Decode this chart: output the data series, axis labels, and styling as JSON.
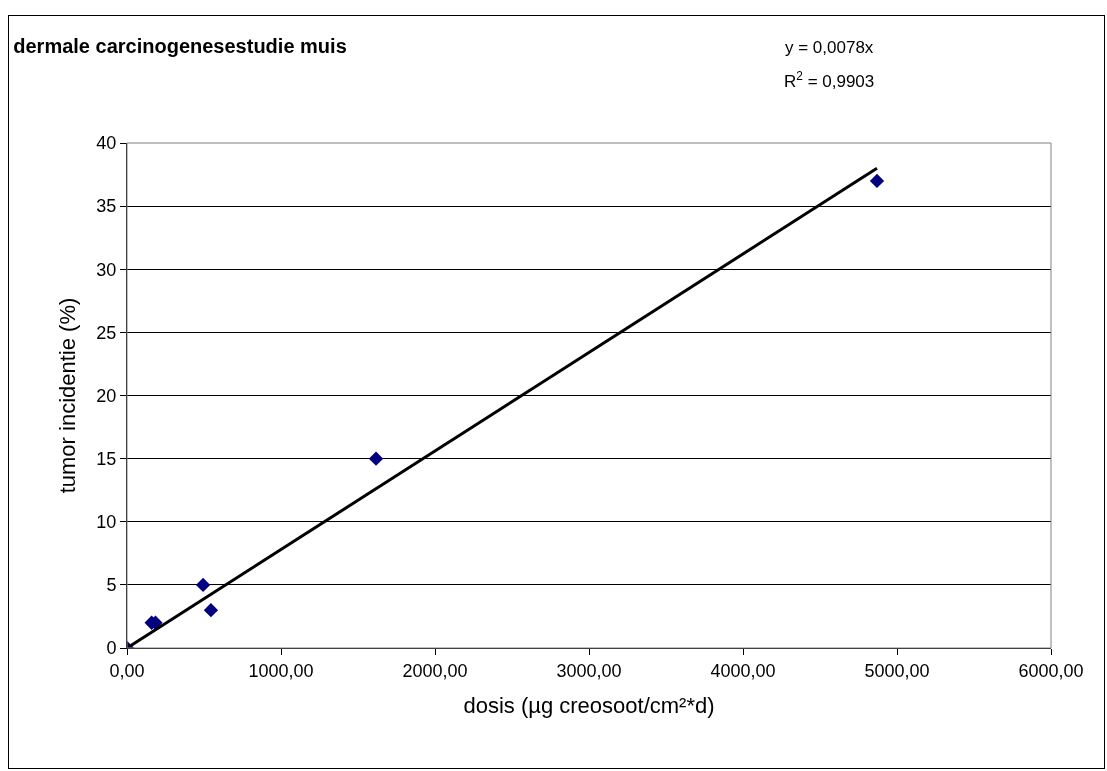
{
  "chart_data": {
    "type": "scatter",
    "title": "dermale carcinogenesestudie muis",
    "xlabel": "dosis (µg creosoot/cm²*d)",
    "ylabel": "tumor incidentie (%)",
    "annotations": [
      "y = 0,0078x",
      "R$^{2}$ = 0,9903"
    ],
    "series": [
      {
        "color": "#000080",
        "marker": "diamond",
        "x": [
          0,
          160,
          185,
          494,
          545,
          1617,
          4870
        ],
        "values": [
          0,
          2,
          2,
          5,
          3,
          15,
          37
        ]
      },
      {
        "type": "line",
        "color": "#000000",
        "marker": "none",
        "line_style": "solid",
        "x": [
          0,
          4870
        ],
        "values": [
          0,
          38
        ]
      }
    ],
    "xlim": [
      0,
      6000
    ],
    "xticks": [
      {
        "value": 0,
        "label": "0,00"
      },
      {
        "value": 1000,
        "label": "1000,00"
      },
      {
        "value": 2000,
        "label": "2000,00"
      },
      {
        "value": 3000,
        "label": "3000,00"
      },
      {
        "value": 4000,
        "label": "4000,00"
      },
      {
        "value": 5000,
        "label": "5000,00"
      },
      {
        "value": 6000,
        "label": "6000,00"
      }
    ],
    "ylim": [
      0,
      40
    ],
    "yticks": [
      0,
      5,
      10,
      15,
      20,
      25,
      30,
      35,
      40
    ],
    "grid": "y",
    "legend": false
  }
}
